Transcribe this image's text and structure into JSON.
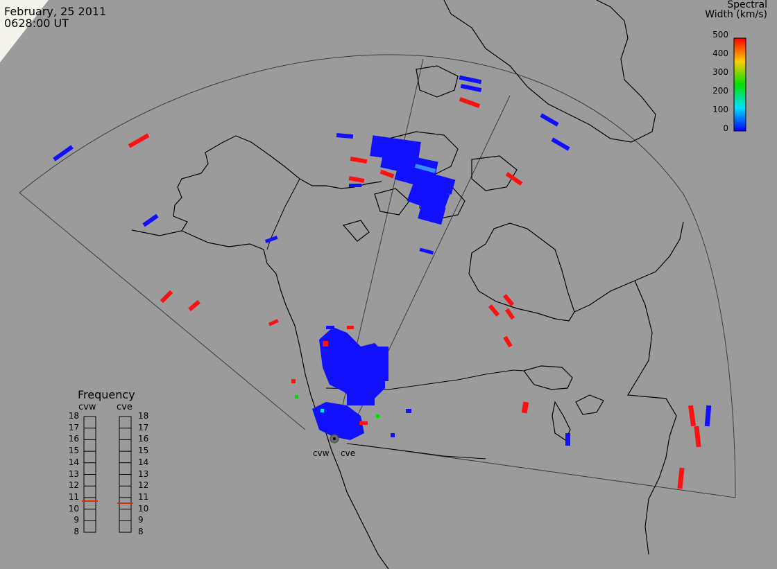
{
  "header": {
    "date": "February, 25 2011",
    "time": "0628:00 UT"
  },
  "colorbar": {
    "title_line1": "Spectral",
    "title_line2": "Width (km/s)",
    "ticks": [
      "500",
      "400",
      "300",
      "200",
      "100",
      "0"
    ],
    "colors": [
      "#ff0000",
      "#ffff00",
      "#00e000",
      "#00ffff",
      "#0000ff"
    ]
  },
  "frequency": {
    "title": "Frequency",
    "radars": [
      {
        "name": "cvw",
        "value_mhz": 10.7
      },
      {
        "name": "cve",
        "value_mhz": 10.5
      }
    ],
    "scale": [
      "18",
      "17",
      "16",
      "15",
      "14",
      "13",
      "12",
      "11",
      "10",
      "9",
      "8"
    ],
    "marker_color": "#e03000"
  },
  "sites": [
    {
      "name": "cvw"
    },
    {
      "name": "cve"
    }
  ],
  "colors": {
    "background": "#9b9b9b",
    "land_outline": "#000000",
    "fov_outline": "#3c3c3c",
    "low_width": "#1010ff",
    "high_width": "#ff1010"
  }
}
